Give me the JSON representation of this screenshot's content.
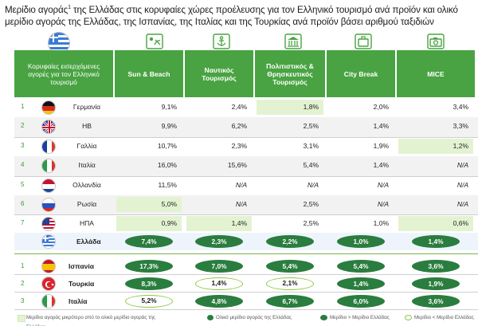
{
  "title_part1": "Μερίδιο αγοράς",
  "title_sup": "1",
  "title_part2": " της Ελλάδας στις κορυφαίες χώρες προέλευσης για τον Ελληνικό τουρισμό ανά προϊόν και ολικό μερίδιο αγοράς της Ελλάδας, της Ισπανίας, της Ιταλίας και της Τουρκίας ανά προϊόν βάσει αριθμού ταξιδιών",
  "header": {
    "first": "Κορυφαίες εισερχόμενες αγορές για τον Ελληνικό τουρισμό",
    "cols": [
      "Sun & Beach",
      "Ναυτικός Τουρισμός",
      "Πολιτιστικός & Θρησκευτικός Τουρισμός",
      "City Break",
      "MICE"
    ],
    "icons": [
      "sun-umbrella-icon",
      "anchor-icon",
      "temple-icon",
      "suitcase-icon",
      "camera-icon"
    ]
  },
  "colors": {
    "green": "#49a342",
    "dark_green": "#2a7d3e",
    "light_green": "#8cc63f",
    "highlight": "#e3f3d2"
  },
  "chart_data": {
    "type": "table",
    "title": "Μερίδιο αγοράς της Ελλάδας ανά προϊόν",
    "columns": [
      "Sun & Beach",
      "Ναυτικός Τουρισμός",
      "Πολιτιστικός & Θρησκευτικός Τουρισμός",
      "City Break",
      "MICE"
    ],
    "markets": [
      {
        "rank": "1",
        "country": "Γερμανία",
        "values": [
          "9,1%",
          "2,4%",
          "1,8%",
          "2,0%",
          "3,4%"
        ],
        "highlight": [
          false,
          false,
          true,
          false,
          false
        ]
      },
      {
        "rank": "2",
        "country": "ΗΒ",
        "values": [
          "9,9%",
          "6,2%",
          "2,5%",
          "1,4%",
          "3,3%"
        ],
        "highlight": [
          false,
          false,
          false,
          false,
          false
        ]
      },
      {
        "rank": "3",
        "country": "Γαλλία",
        "values": [
          "10,7%",
          "2,3%",
          "3,1%",
          "1,9%",
          "1,2%"
        ],
        "highlight": [
          false,
          false,
          false,
          false,
          true
        ]
      },
      {
        "rank": "4",
        "country": "Ιταλία",
        "values": [
          "16,0%",
          "15,6%",
          "5,4%",
          "1,4%",
          "N/A"
        ],
        "highlight": [
          false,
          false,
          false,
          false,
          false
        ]
      },
      {
        "rank": "5",
        "country": "Ολλανδία",
        "values": [
          "11,5%",
          "N/A",
          "N/A",
          "N/A",
          "N/A"
        ],
        "highlight": [
          false,
          false,
          false,
          false,
          false
        ]
      },
      {
        "rank": "6",
        "country": "Ρωσία",
        "values": [
          "5,0%",
          "N/A",
          "2,5%",
          "N/A",
          "N/A"
        ],
        "highlight": [
          true,
          false,
          false,
          false,
          false
        ]
      },
      {
        "rank": "7",
        "country": "ΗΠΑ",
        "values": [
          "0,9%",
          "1,4%",
          "2,5%",
          "1,0%",
          "0,6%"
        ],
        "highlight": [
          true,
          true,
          false,
          false,
          true
        ]
      }
    ],
    "greece": {
      "label": "Ελλάδα",
      "values": [
        "7,4%",
        "2,3%",
        "2,2%",
        "1,0%",
        "1,4%"
      ]
    },
    "competitors": [
      {
        "rank": "1",
        "country": "Ισπανία",
        "values": [
          "17,3%",
          "7,0%",
          "5,4%",
          "5,4%",
          "3,6%"
        ],
        "styles": [
          "dark",
          "dark",
          "dark",
          "dark",
          "dark"
        ]
      },
      {
        "rank": "2",
        "country": "Τουρκία",
        "values": [
          "8,3%",
          "1,4%",
          "2,1%",
          "1,4%",
          "1,9%"
        ],
        "styles": [
          "dark",
          "outline",
          "outline",
          "dark",
          "dark"
        ]
      },
      {
        "rank": "3",
        "country": "Ιταλία",
        "values": [
          "5,2%",
          "4,8%",
          "6,7%",
          "6,0%",
          "3,6%"
        ],
        "styles": [
          "outline",
          "dark",
          "dark",
          "dark",
          "dark"
        ]
      }
    ]
  },
  "legend": [
    "Μερίδιο αγοράς μικρότερο από το ολικό μερίδιο αγοράς της Ελλάδας",
    "Ολικό μερίδιο αγοράς της Ελλάδας",
    "Μερίδιο > Μερίδιο Ελλάδας",
    "Μερίδιο < Μερίδιο Ελλάδας"
  ]
}
